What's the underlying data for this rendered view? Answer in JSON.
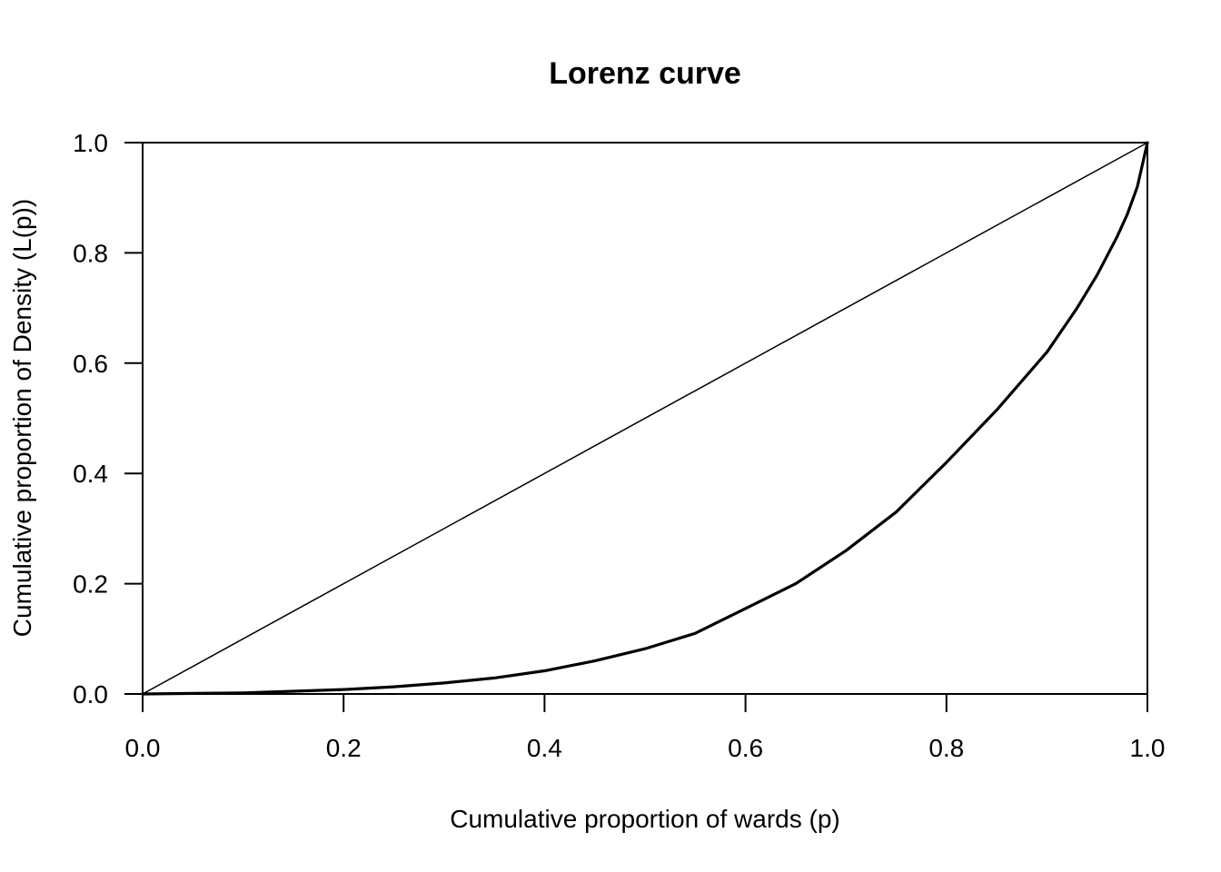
{
  "chart_data": {
    "type": "line",
    "title": "Lorenz curve",
    "xlabel": "Cumulative proportion of wards (p)",
    "ylabel": "Cumulative proportion of Density (L(p))",
    "xlim": [
      0,
      1
    ],
    "ylim": [
      0,
      1
    ],
    "x_ticks": [
      "0.0",
      "0.2",
      "0.4",
      "0.6",
      "0.8",
      "1.0"
    ],
    "y_ticks": [
      "0.0",
      "0.2",
      "0.4",
      "0.6",
      "0.8",
      "1.0"
    ],
    "grid": false,
    "legend": "none",
    "series": [
      {
        "x": [
          0,
          1
        ],
        "y": [
          0,
          1
        ]
      },
      {
        "x": [
          0,
          0.05,
          0.1,
          0.15,
          0.2,
          0.25,
          0.3,
          0.35,
          0.4,
          0.45,
          0.5,
          0.55,
          0.6,
          0.65,
          0.7,
          0.75,
          0.8,
          0.85,
          0.9,
          0.93,
          0.95,
          0.97,
          0.98,
          0.99,
          1.0
        ],
        "y": [
          0,
          0.001,
          0.002,
          0.005,
          0.008,
          0.013,
          0.02,
          0.029,
          0.042,
          0.06,
          0.082,
          0.11,
          0.155,
          0.2,
          0.26,
          0.33,
          0.42,
          0.515,
          0.62,
          0.7,
          0.76,
          0.83,
          0.87,
          0.92,
          1.0
        ]
      }
    ]
  }
}
